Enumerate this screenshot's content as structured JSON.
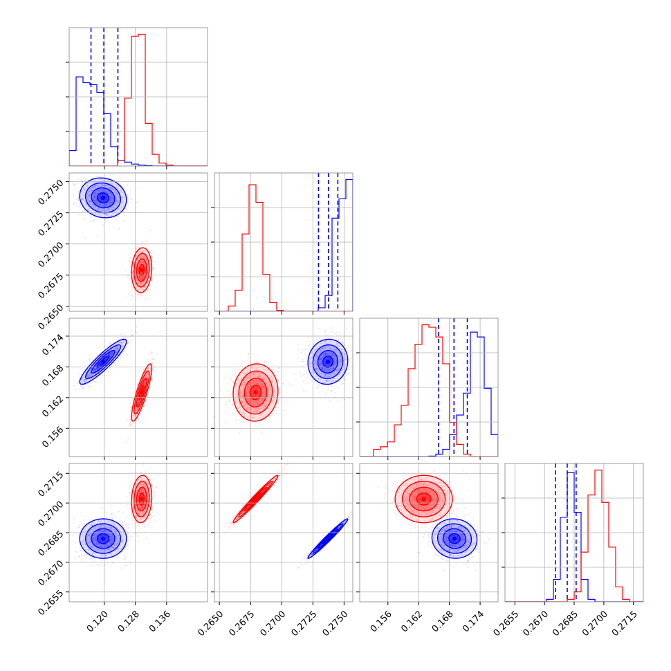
{
  "chart_data": {
    "type": "corner",
    "title": "",
    "parameters": [
      {
        "xlabel": "",
        "range": [
          0.111,
          0.1465
        ],
        "ticks": [
          0.12,
          0.128,
          0.136
        ],
        "tick_labels": [
          "0.120",
          "0.128",
          "0.136"
        ]
      },
      {
        "xlabel": "",
        "range": [
          0.2646,
          0.2757
        ],
        "ticks": [
          0.265,
          0.2675,
          0.27,
          0.2725,
          0.275
        ],
        "tick_labels": [
          "0.2650",
          "0.2675",
          "0.2700",
          "0.2725",
          "0.2750"
        ]
      },
      {
        "xlabel": "",
        "range": [
          0.1505,
          0.1775
        ],
        "ticks": [
          0.156,
          0.162,
          0.168,
          0.174
        ],
        "tick_labels": [
          "0.156",
          "0.162",
          "0.168",
          "0.174"
        ]
      },
      {
        "xlabel": "",
        "range": [
          0.265,
          0.272
        ],
        "ticks": [
          0.2655,
          0.267,
          0.2685,
          0.27,
          0.2715
        ],
        "tick_labels": [
          "0.2655",
          "0.2670",
          "0.2685",
          "0.2700",
          "0.2715"
        ]
      }
    ],
    "grid": true,
    "legend": "none",
    "series": [
      {
        "color": "#0000ff",
        "mean": [
          0.1197,
          0.2737,
          0.169,
          0.2682
        ],
        "std": [
          0.003,
          0.0008,
          0.0022,
          0.0005
        ],
        "corr": [
          [
            1.0,
            -0.1,
            0.9,
            0.0
          ],
          [
            -0.1,
            1.0,
            0.05,
            0.98
          ],
          [
            0.9,
            0.05,
            1.0,
            -0.05
          ],
          [
            0.0,
            0.98,
            -0.05,
            1.0
          ]
        ],
        "quantiles": [
          [
            0.1166,
            0.1199,
            0.1235
          ],
          [
            0.27295,
            0.27375,
            0.2745
          ],
          [
            0.1659,
            0.1689,
            0.1715
          ],
          [
            0.26755,
            0.26815,
            0.2686
          ]
        ],
        "hist": [
          [
            0.8,
            4.6,
            4.3,
            4.2,
            3.8,
            2.7,
            1.0,
            0.3,
            0.2,
            0.1,
            0.05,
            0.02,
            0.0,
            0.0,
            0.0,
            0.0,
            0.0,
            0.0,
            0.0,
            0.0
          ],
          [
            0.0,
            0.0,
            0.0,
            0.0,
            0.0,
            0.0,
            0.0,
            0.0,
            0.0,
            0.0,
            0.0,
            0.0,
            0.0,
            0.0,
            0.0,
            0.2,
            0.9,
            5.3,
            6.4,
            7.5
          ],
          [
            0.0,
            0.0,
            0.0,
            0.0,
            0.0,
            0.0,
            0.0,
            0.0,
            0.0,
            0.0,
            0.02,
            0.1,
            0.3,
            0.9,
            1.7,
            2.6,
            5.1,
            4.9,
            2.8,
            0.9
          ],
          [
            0.0,
            0.0,
            0.0,
            0.0,
            0.0,
            0.0,
            0.1,
            0.9,
            3.4,
            5.2,
            3.6,
            0.9,
            0.1,
            0.0,
            0.0,
            0.0,
            0.0,
            0.0,
            0.0,
            0.0
          ]
        ]
      },
      {
        "color": "#ff0000",
        "mean": [
          0.1296,
          0.2679,
          0.163,
          0.2702
        ],
        "std": [
          0.0013,
          0.0009,
          0.0028,
          0.0006
        ],
        "corr": [
          [
            1.0,
            0.1,
            0.85,
            0.1
          ],
          [
            0.1,
            1.0,
            0.05,
            0.98
          ],
          [
            0.85,
            0.05,
            1.0,
            0.0
          ],
          [
            0.1,
            0.98,
            0.0,
            1.0
          ]
        ],
        "quantiles": [],
        "hist": [
          [
            0.0,
            0.0,
            0.0,
            0.0,
            0.0,
            0.0,
            0.0,
            0.3,
            3.5,
            6.7,
            6.8,
            2.2,
            0.6,
            0.15,
            0.05,
            0.0,
            0.0,
            0.0,
            0.0,
            0.0
          ],
          [
            0.0,
            0.0,
            0.3,
            1.2,
            4.4,
            7.2,
            6.2,
            2.1,
            0.5,
            0.05,
            0.0,
            0.0,
            0.0,
            0.0,
            0.0,
            0.0,
            0.0,
            0.0,
            0.0,
            0.0
          ],
          [
            0.0,
            0.0,
            0.3,
            0.4,
            0.6,
            1.3,
            2.1,
            3.6,
            4.6,
            5.4,
            5.3,
            4.9,
            3.8,
            1.4,
            0.5,
            0.1,
            0.0,
            0.0,
            0.0,
            0.0
          ],
          [
            0.0,
            0.0,
            0.0,
            0.0,
            0.0,
            0.0,
            0.0,
            0.0,
            0.0,
            0.1,
            0.4,
            2.0,
            4.3,
            5.3,
            4.0,
            2.2,
            0.6,
            0.1,
            0.0,
            0.0
          ]
        ]
      }
    ]
  }
}
